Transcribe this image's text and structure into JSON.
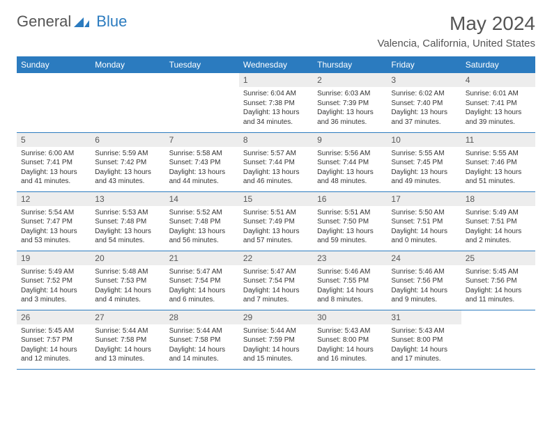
{
  "logo": {
    "general": "General",
    "blue": "Blue"
  },
  "title": "May 2024",
  "location": "Valencia, California, United States",
  "colors": {
    "header_bg": "#2b7bbf",
    "header_text": "#ffffff",
    "daynum_bg": "#ededed",
    "border": "#2b7bbf",
    "text": "#333333",
    "muted": "#555555"
  },
  "fonts": {
    "title_size": 28,
    "location_size": 15,
    "weekday_size": 12,
    "daynum_size": 12,
    "body_size": 10
  },
  "weekdays": [
    "Sunday",
    "Monday",
    "Tuesday",
    "Wednesday",
    "Thursday",
    "Friday",
    "Saturday"
  ],
  "firstWeekday": 3,
  "daysInMonth": 31,
  "days": {
    "1": {
      "sunrise": "6:04 AM",
      "sunset": "7:38 PM",
      "daylight": "13 hours and 34 minutes."
    },
    "2": {
      "sunrise": "6:03 AM",
      "sunset": "7:39 PM",
      "daylight": "13 hours and 36 minutes."
    },
    "3": {
      "sunrise": "6:02 AM",
      "sunset": "7:40 PM",
      "daylight": "13 hours and 37 minutes."
    },
    "4": {
      "sunrise": "6:01 AM",
      "sunset": "7:41 PM",
      "daylight": "13 hours and 39 minutes."
    },
    "5": {
      "sunrise": "6:00 AM",
      "sunset": "7:41 PM",
      "daylight": "13 hours and 41 minutes."
    },
    "6": {
      "sunrise": "5:59 AM",
      "sunset": "7:42 PM",
      "daylight": "13 hours and 43 minutes."
    },
    "7": {
      "sunrise": "5:58 AM",
      "sunset": "7:43 PM",
      "daylight": "13 hours and 44 minutes."
    },
    "8": {
      "sunrise": "5:57 AM",
      "sunset": "7:44 PM",
      "daylight": "13 hours and 46 minutes."
    },
    "9": {
      "sunrise": "5:56 AM",
      "sunset": "7:44 PM",
      "daylight": "13 hours and 48 minutes."
    },
    "10": {
      "sunrise": "5:55 AM",
      "sunset": "7:45 PM",
      "daylight": "13 hours and 49 minutes."
    },
    "11": {
      "sunrise": "5:55 AM",
      "sunset": "7:46 PM",
      "daylight": "13 hours and 51 minutes."
    },
    "12": {
      "sunrise": "5:54 AM",
      "sunset": "7:47 PM",
      "daylight": "13 hours and 53 minutes."
    },
    "13": {
      "sunrise": "5:53 AM",
      "sunset": "7:48 PM",
      "daylight": "13 hours and 54 minutes."
    },
    "14": {
      "sunrise": "5:52 AM",
      "sunset": "7:48 PM",
      "daylight": "13 hours and 56 minutes."
    },
    "15": {
      "sunrise": "5:51 AM",
      "sunset": "7:49 PM",
      "daylight": "13 hours and 57 minutes."
    },
    "16": {
      "sunrise": "5:51 AM",
      "sunset": "7:50 PM",
      "daylight": "13 hours and 59 minutes."
    },
    "17": {
      "sunrise": "5:50 AM",
      "sunset": "7:51 PM",
      "daylight": "14 hours and 0 minutes."
    },
    "18": {
      "sunrise": "5:49 AM",
      "sunset": "7:51 PM",
      "daylight": "14 hours and 2 minutes."
    },
    "19": {
      "sunrise": "5:49 AM",
      "sunset": "7:52 PM",
      "daylight": "14 hours and 3 minutes."
    },
    "20": {
      "sunrise": "5:48 AM",
      "sunset": "7:53 PM",
      "daylight": "14 hours and 4 minutes."
    },
    "21": {
      "sunrise": "5:47 AM",
      "sunset": "7:54 PM",
      "daylight": "14 hours and 6 minutes."
    },
    "22": {
      "sunrise": "5:47 AM",
      "sunset": "7:54 PM",
      "daylight": "14 hours and 7 minutes."
    },
    "23": {
      "sunrise": "5:46 AM",
      "sunset": "7:55 PM",
      "daylight": "14 hours and 8 minutes."
    },
    "24": {
      "sunrise": "5:46 AM",
      "sunset": "7:56 PM",
      "daylight": "14 hours and 9 minutes."
    },
    "25": {
      "sunrise": "5:45 AM",
      "sunset": "7:56 PM",
      "daylight": "14 hours and 11 minutes."
    },
    "26": {
      "sunrise": "5:45 AM",
      "sunset": "7:57 PM",
      "daylight": "14 hours and 12 minutes."
    },
    "27": {
      "sunrise": "5:44 AM",
      "sunset": "7:58 PM",
      "daylight": "14 hours and 13 minutes."
    },
    "28": {
      "sunrise": "5:44 AM",
      "sunset": "7:58 PM",
      "daylight": "14 hours and 14 minutes."
    },
    "29": {
      "sunrise": "5:44 AM",
      "sunset": "7:59 PM",
      "daylight": "14 hours and 15 minutes."
    },
    "30": {
      "sunrise": "5:43 AM",
      "sunset": "8:00 PM",
      "daylight": "14 hours and 16 minutes."
    },
    "31": {
      "sunrise": "5:43 AM",
      "sunset": "8:00 PM",
      "daylight": "14 hours and 17 minutes."
    }
  },
  "labels": {
    "sunrise": "Sunrise:",
    "sunset": "Sunset:",
    "daylight": "Daylight:"
  }
}
